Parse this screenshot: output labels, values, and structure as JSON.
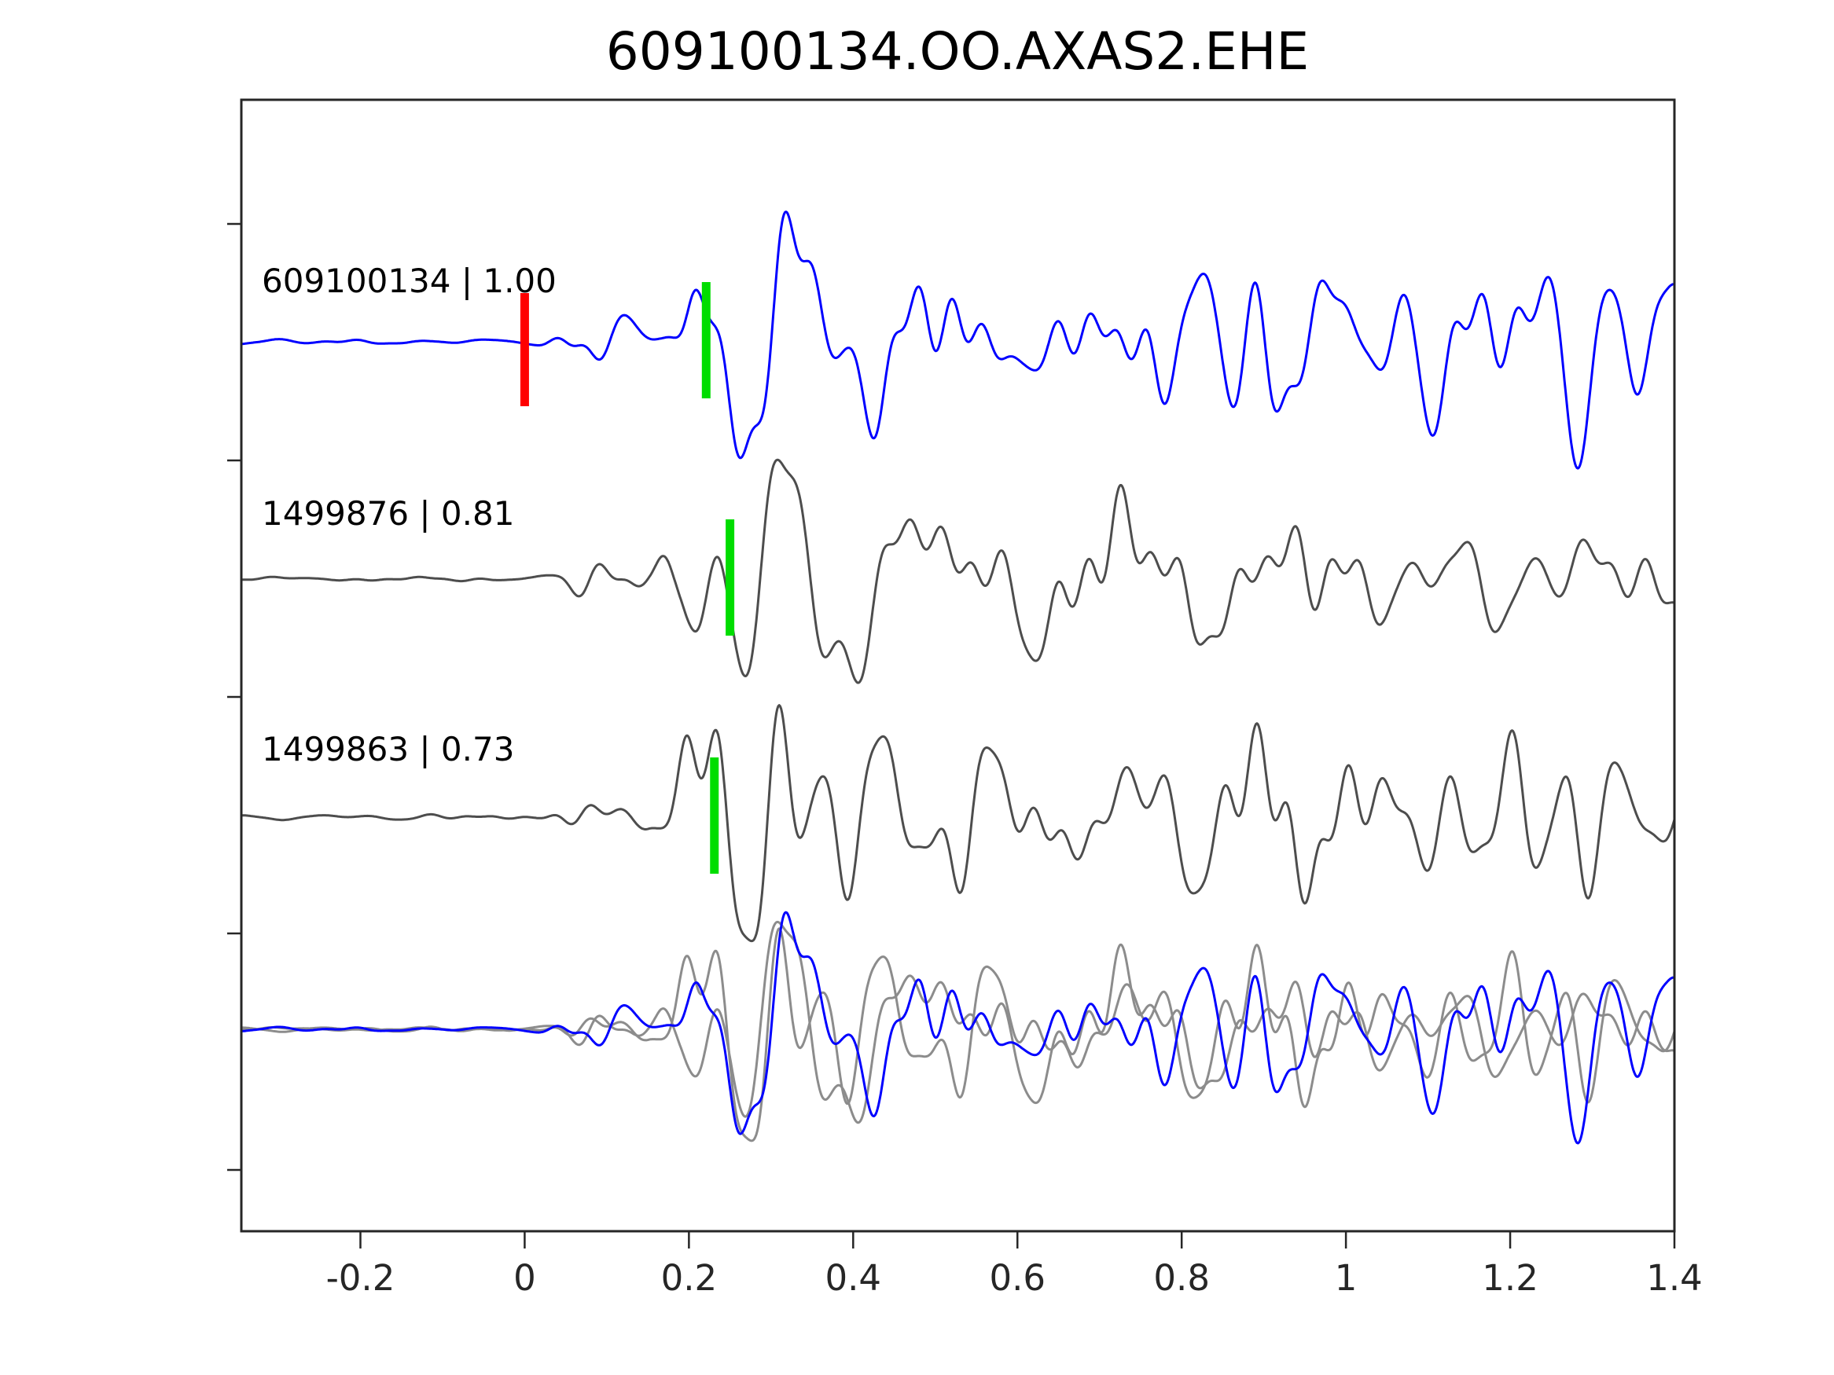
{
  "chart_data": {
    "type": "line",
    "title": "609100134.OO.AXAS2.EHE",
    "xlabel": "",
    "ylabel": "",
    "xlim": [
      -0.345,
      1.4
    ],
    "x_ticks": [
      -0.2,
      0,
      0.2,
      0.4,
      0.6,
      0.8,
      1,
      1.2,
      1.4
    ],
    "x_tick_labels": [
      "-0.2",
      "0",
      "0.2",
      "0.4",
      "0.6",
      "0.8",
      "1",
      "1.2",
      "1.4"
    ],
    "y_ticks": [],
    "grid": false,
    "legend": "none",
    "background": "#ffffff",
    "axes_color": "#262626",
    "description": "Template waveform (blue) compared against two matched detections (gray); bottom row shows all traces overlaid. Red bar = origin/reference time at 0, green bars = phase picks.",
    "traces": [
      {
        "event_id": "609100134",
        "similarity": "1.00",
        "label": "609100134 | 1.00",
        "color": "#0000ff",
        "role": "template-trace",
        "picks": [
          {
            "x": 0.0,
            "color": "#ff0000",
            "type": "origin-marker"
          },
          {
            "x": 0.221,
            "color": "#00dd00",
            "type": "pick-marker"
          }
        ],
        "render": {
          "baseline": 435,
          "amp": 160,
          "seed": 11,
          "t0": 0.235,
          "up": 1.05,
          "dn": 0.95
        }
      },
      {
        "event_id": "1499876",
        "similarity": "0.81",
        "label": "1499876 | 0.81",
        "color": "#4d4d4d",
        "role": "matched-trace",
        "picks": [
          {
            "x": 0.25,
            "color": "#00dd00",
            "type": "pick-marker"
          }
        ],
        "render": {
          "baseline": 737,
          "amp": 150,
          "seed": 23,
          "t0": 0.22,
          "up": 0.8,
          "dn": 1.1
        }
      },
      {
        "event_id": "1499863",
        "similarity": "0.73",
        "label": "1499863 | 0.73",
        "color": "#4d4d4d",
        "role": "matched-trace",
        "picks": [
          {
            "x": 0.231,
            "color": "#00dd00",
            "type": "pick-marker"
          }
        ],
        "render": {
          "baseline": 1040,
          "amp": 150,
          "seed": 37,
          "t0": 0.221,
          "up": 0.85,
          "dn": 0.95
        }
      }
    ],
    "overlay": {
      "render": {
        "baseline": 1310,
        "amp_scale": 0.9
      },
      "members": [
        {
          "trace": 1,
          "color": "#8c8c8c"
        },
        {
          "trace": 2,
          "color": "#8c8c8c"
        },
        {
          "trace": 0,
          "color": "#0000ff"
        }
      ]
    }
  }
}
